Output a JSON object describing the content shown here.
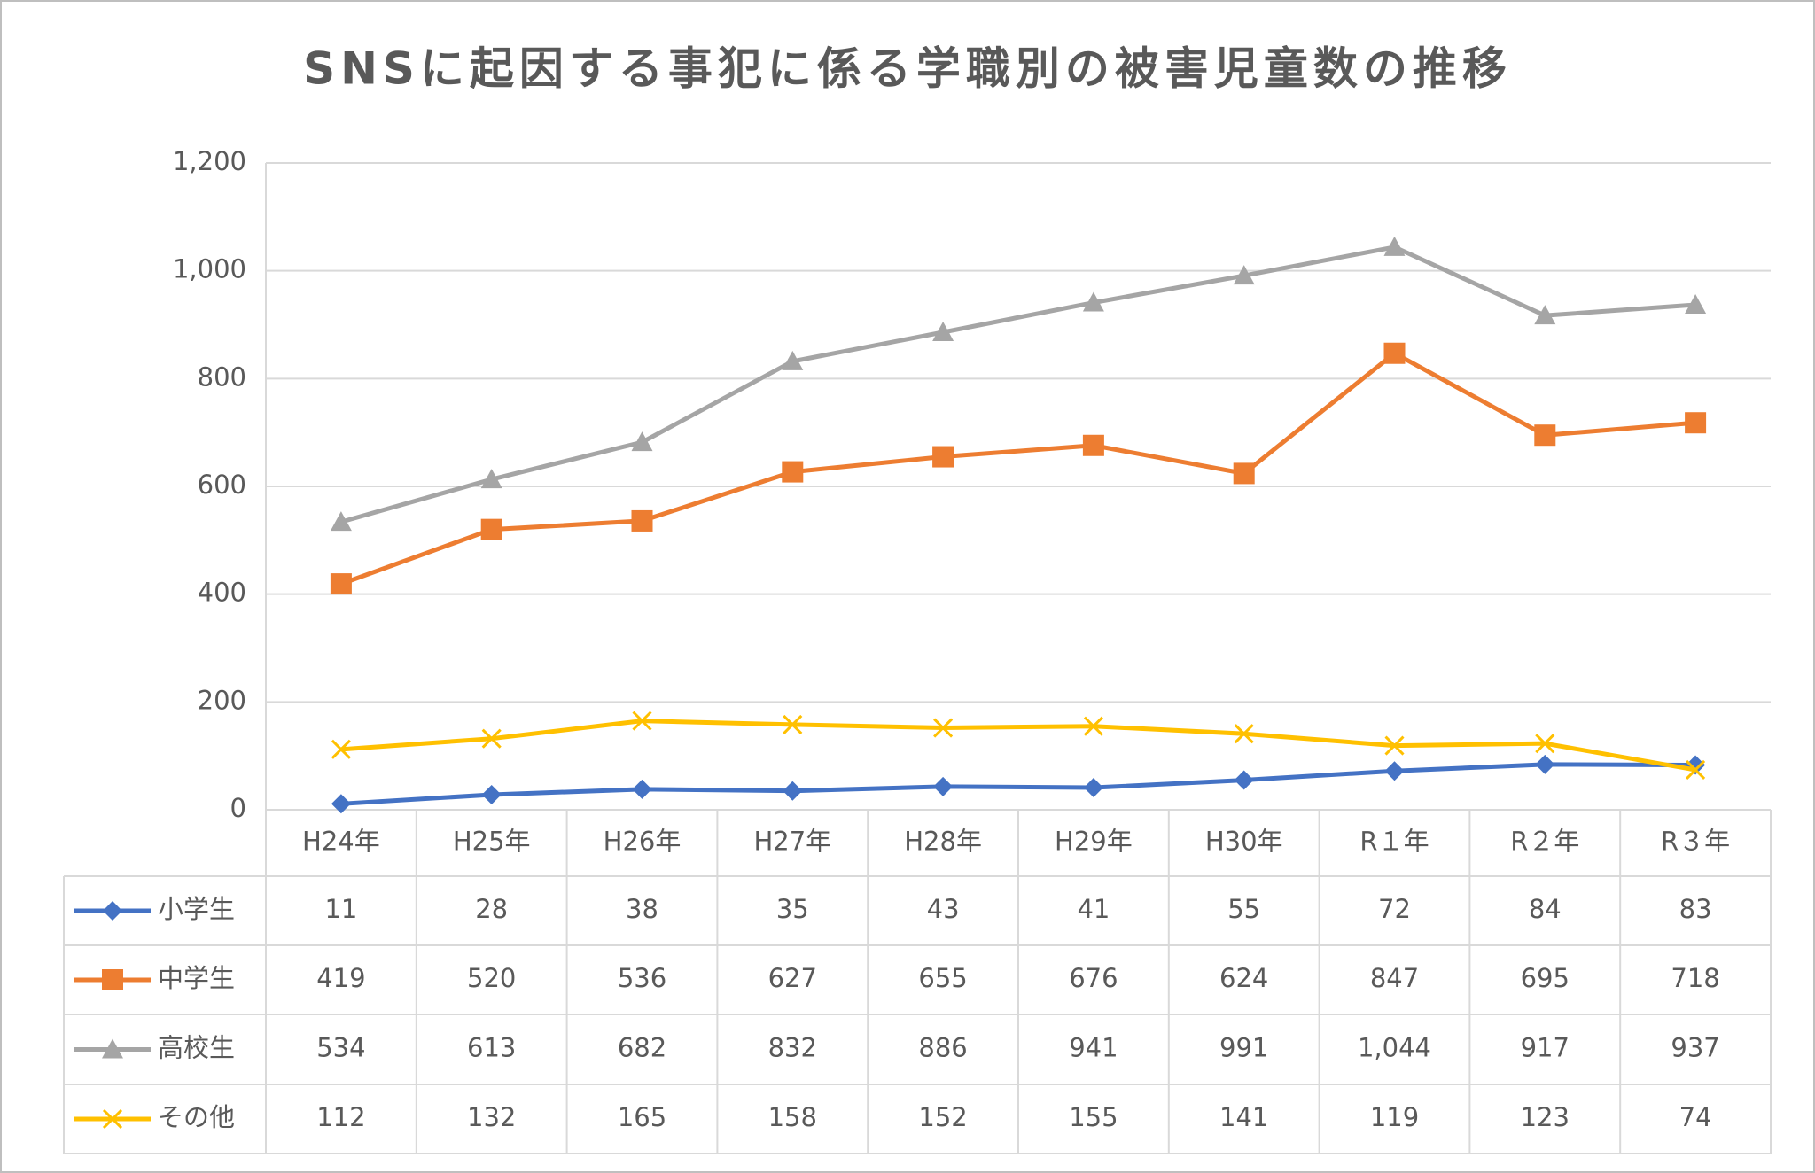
{
  "chart_data": {
    "type": "line",
    "title": "SNSに起因する事犯に係る学職別の被害児童数の推移",
    "categories": [
      "H24年",
      "H25年",
      "H26年",
      "H27年",
      "H28年",
      "H29年",
      "H30年",
      "R１年",
      "R２年",
      "R３年"
    ],
    "series": [
      {
        "name": "小学生",
        "color": "#4472c4",
        "marker": "diamond",
        "values": [
          11,
          28,
          38,
          35,
          43,
          41,
          55,
          72,
          84,
          83
        ]
      },
      {
        "name": "中学生",
        "color": "#ed7d31",
        "marker": "square",
        "values": [
          419,
          520,
          536,
          627,
          655,
          676,
          624,
          847,
          695,
          718
        ]
      },
      {
        "name": "高校生",
        "color": "#a5a5a5",
        "marker": "triangle",
        "values": [
          534,
          613,
          682,
          832,
          886,
          941,
          991,
          1044,
          917,
          937
        ],
        "value_labels": [
          "534",
          "613",
          "682",
          "832",
          "886",
          "941",
          "991",
          "1,044",
          "917",
          "937"
        ]
      },
      {
        "name": "その他",
        "color": "#ffc000",
        "marker": "x",
        "values": [
          112,
          132,
          165,
          158,
          152,
          155,
          141,
          119,
          123,
          74
        ]
      }
    ],
    "ylim": [
      0,
      1200
    ],
    "yticks": [
      0,
      200,
      400,
      600,
      800,
      {
        "value": 1000,
        "label": "1,000"
      },
      {
        "value": 1200,
        "label": "1,200"
      }
    ],
    "grid": true,
    "data_table": true
  }
}
